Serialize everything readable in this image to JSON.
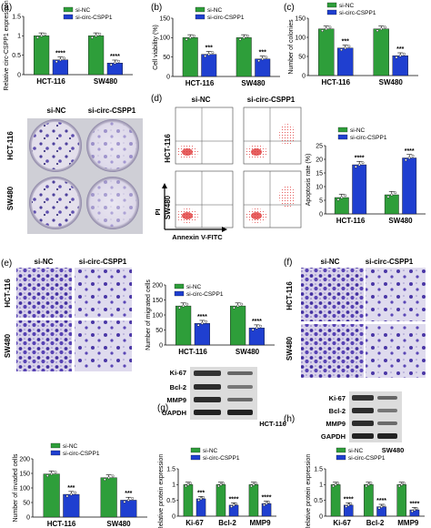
{
  "colors": {
    "si_nc": "#2e9e3a",
    "si_circ": "#1f3fd0",
    "stain": "#4b3aa6",
    "bg_light": "#e6e3ee"
  },
  "panels": {
    "a": {
      "label": "(a)",
      "cond": [
        "si-NC",
        "si-circ-CSPP1"
      ],
      "rows": [
        "HCT-116",
        "SW480"
      ]
    },
    "b": {
      "label": "(b)"
    },
    "c": {
      "label": "(c)"
    },
    "d": {
      "label": "(d)",
      "cond": [
        "si-NC",
        "si-circ-CSPP1"
      ],
      "rows": [
        "HCT-116",
        "SW480"
      ],
      "xaxis": "Annexin V-FITC",
      "yaxis": "PI"
    },
    "e": {
      "label": "(e)",
      "cond": [
        "si-NC",
        "si-circ-CSPP1"
      ],
      "rows": [
        "HCT-116",
        "SW480"
      ]
    },
    "f": {
      "label": "(f)",
      "cond": [
        "si-NC",
        "si-circ-CSPP1"
      ],
      "rows": [
        "HCT-116",
        "SW480"
      ]
    },
    "g": {
      "label": "(g)",
      "cell": "HCT-116",
      "blots": [
        "Ki-67",
        "Bcl-2",
        "MMP9",
        "GAPDH"
      ]
    },
    "h": {
      "label": "(h)",
      "cell": "SW480",
      "blots": [
        "Ki-67",
        "Bcl-2",
        "MMP9",
        "GAPDH"
      ]
    }
  },
  "chart_data": [
    {
      "id": "a",
      "type": "bar",
      "categories": [
        "HCT-116",
        "SW480"
      ],
      "ylabel": "Relative circ-CSPP1 expression",
      "ylim": [
        0,
        1.5
      ],
      "yticks": [
        0,
        0.5,
        1.0,
        1.5
      ],
      "series": [
        {
          "name": "si-NC",
          "values": [
            1.0,
            1.0
          ]
        },
        {
          "name": "si-circ-CSPP1",
          "values": [
            0.38,
            0.3
          ]
        }
      ],
      "sig": [
        "****",
        "****"
      ]
    },
    {
      "id": "b",
      "type": "bar",
      "categories": [
        "HCT-116",
        "SW480"
      ],
      "ylabel": "Cell viability (%)",
      "ylim": [
        0,
        150
      ],
      "yticks": [
        0,
        50,
        100,
        150
      ],
      "series": [
        {
          "name": "si-NC",
          "values": [
            100,
            100
          ]
        },
        {
          "name": "si-circ-CSPP1",
          "values": [
            57,
            45
          ]
        }
      ],
      "sig": [
        "***",
        "***"
      ]
    },
    {
      "id": "c",
      "type": "bar",
      "categories": [
        "HCT-116",
        "SW480"
      ],
      "ylabel": "Number of colonies",
      "ylim": [
        0,
        150
      ],
      "yticks": [
        0,
        50,
        100,
        150
      ],
      "series": [
        {
          "name": "si-NC",
          "values": [
            122,
            122
          ]
        },
        {
          "name": "si-circ-CSPP1",
          "values": [
            72,
            52
          ]
        }
      ],
      "sig": [
        "***",
        "***"
      ]
    },
    {
      "id": "d",
      "type": "bar",
      "categories": [
        "HCT-116",
        "SW480"
      ],
      "ylabel": "Apoptosis rate (%)",
      "ylim": [
        0,
        25
      ],
      "yticks": [
        0,
        5,
        10,
        15,
        20,
        25
      ],
      "series": [
        {
          "name": "si-NC",
          "values": [
            6,
            7
          ]
        },
        {
          "name": "si-circ-CSPP1",
          "values": [
            18,
            20.5
          ]
        }
      ],
      "sig": [
        "****",
        "****"
      ]
    },
    {
      "id": "e",
      "type": "bar",
      "categories": [
        "HCT-116",
        "SW480"
      ],
      "ylabel": "Number of migrated cells",
      "ylim": [
        0,
        200
      ],
      "yticks": [
        0,
        50,
        100,
        150,
        200
      ],
      "series": [
        {
          "name": "si-NC",
          "values": [
            130,
            130
          ]
        },
        {
          "name": "si-circ-CSPP1",
          "values": [
            72,
            57
          ]
        }
      ],
      "sig": [
        "****",
        "****"
      ]
    },
    {
      "id": "f",
      "type": "bar",
      "categories": [
        "HCT-116",
        "SW480"
      ],
      "ylabel": "Number of invaded cells",
      "ylim": [
        0,
        200
      ],
      "yticks": [
        0,
        50,
        100,
        150,
        200
      ],
      "series": [
        {
          "name": "si-NC",
          "values": [
            148,
            135
          ]
        },
        {
          "name": "si-circ-CSPP1",
          "values": [
            78,
            58
          ]
        }
      ],
      "sig": [
        "***",
        "***"
      ]
    },
    {
      "id": "g",
      "type": "bar",
      "categories": [
        "Ki-67",
        "Bcl-2",
        "MMP9"
      ],
      "ylabel": "Relative protein expression",
      "ylim": [
        0,
        1.5
      ],
      "yticks": [
        0,
        0.5,
        1.0,
        1.5
      ],
      "series": [
        {
          "name": "si-NC",
          "values": [
            1.0,
            1.0,
            1.0
          ]
        },
        {
          "name": "si-circ-CSPP1",
          "values": [
            0.55,
            0.35,
            0.4
          ]
        }
      ],
      "sig": [
        "***",
        "****",
        "****"
      ]
    },
    {
      "id": "h",
      "type": "bar",
      "categories": [
        "Ki-67",
        "Bcl-2",
        "MMP9"
      ],
      "ylabel": "Relative protein expression",
      "ylim": [
        0,
        1.5
      ],
      "yticks": [
        0,
        0.5,
        1.0,
        1.5
      ],
      "series": [
        {
          "name": "si-NC",
          "values": [
            1.0,
            1.0,
            1.0
          ]
        },
        {
          "name": "si-circ-CSPP1",
          "values": [
            0.35,
            0.3,
            0.2
          ]
        }
      ],
      "sig": [
        "****",
        "****",
        "****"
      ]
    }
  ]
}
